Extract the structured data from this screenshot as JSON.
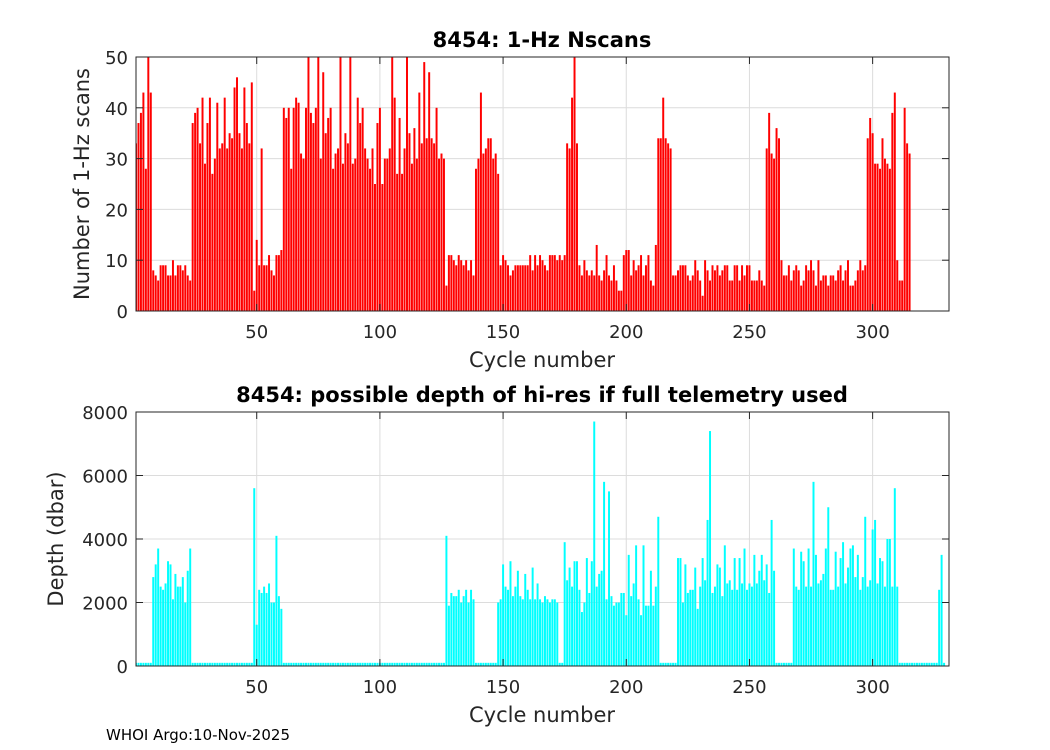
{
  "footer": "WHOI Argo:10-Nov-2025",
  "chart_data": [
    {
      "type": "bar",
      "title": "8454: 1-Hz Nscans",
      "xlabel": "Cycle number",
      "ylabel": "Number of 1-Hz scans",
      "xlim": [
        1,
        331
      ],
      "ylim": [
        0,
        50
      ],
      "xticks": [
        50,
        100,
        150,
        200,
        250,
        300
      ],
      "yticks": [
        0,
        10,
        20,
        30,
        40,
        50
      ],
      "grid": true,
      "bar_color": "#ff0000",
      "x_start": 1,
      "values": [
        33,
        37,
        39,
        43,
        28,
        50,
        43,
        8,
        7,
        6,
        9,
        9,
        9,
        7,
        7,
        10,
        7,
        9,
        9,
        8,
        9,
        7,
        6,
        37,
        39,
        40,
        33,
        42,
        29,
        37,
        42,
        27,
        30,
        41,
        32,
        33,
        42,
        32,
        35,
        34,
        44,
        46,
        35,
        32,
        44,
        37,
        33,
        45,
        4,
        14,
        9,
        32,
        9,
        9,
        11,
        8,
        7,
        11,
        11,
        12,
        40,
        38,
        40,
        28,
        40,
        42,
        41,
        31,
        30,
        40,
        50,
        39,
        37,
        40,
        50,
        30,
        47,
        35,
        38,
        40,
        28,
        31,
        32,
        50,
        29,
        35,
        33,
        50,
        29,
        30,
        42,
        37,
        40,
        32,
        30,
        28,
        32,
        25,
        37,
        40,
        25,
        30,
        30,
        32,
        50,
        42,
        27,
        38,
        27,
        32,
        50,
        35,
        29,
        36,
        30,
        43,
        33,
        49,
        34,
        47,
        34,
        33,
        40,
        30,
        31,
        30,
        5,
        11,
        11,
        10,
        9,
        11,
        10,
        9,
        10,
        8,
        10,
        7,
        28,
        30,
        43,
        31,
        32,
        34,
        34,
        30,
        31,
        27,
        9,
        11,
        10,
        9,
        7,
        8,
        9,
        9,
        9,
        9,
        9,
        9,
        11,
        8,
        11,
        9,
        11,
        10,
        9,
        8,
        11,
        11,
        11,
        10,
        11,
        10,
        11,
        33,
        32,
        42,
        50,
        33,
        9,
        7,
        10,
        8,
        7,
        8,
        7,
        13,
        7,
        6,
        8,
        11,
        7,
        6,
        9,
        6,
        4,
        4,
        11,
        12,
        12,
        7,
        10,
        8,
        9,
        11,
        7,
        9,
        11,
        6,
        5,
        13,
        34,
        34,
        42,
        34,
        33,
        32,
        7,
        7,
        8,
        9,
        9,
        9,
        7,
        6,
        7,
        10,
        8,
        6,
        3,
        10,
        8,
        6,
        9,
        8,
        9,
        7,
        8,
        9,
        9,
        6,
        6,
        9,
        9,
        6,
        9,
        7,
        9,
        9,
        6,
        6,
        6,
        8,
        6,
        5,
        32,
        39,
        31,
        30,
        36,
        34,
        10,
        7,
        7,
        9,
        6,
        8,
        9,
        8,
        5,
        6,
        9,
        8,
        10,
        8,
        5,
        10,
        6,
        7,
        7,
        5,
        7,
        7,
        6,
        8,
        9,
        6,
        8,
        10,
        5,
        5,
        6,
        8,
        10,
        8,
        9,
        34,
        38,
        35,
        29,
        29,
        28,
        34,
        30,
        29,
        28,
        39,
        43,
        10,
        6,
        6,
        40,
        33,
        31
      ]
    },
    {
      "type": "bar",
      "title": "8454: possible depth of hi-res if full telemetry used",
      "xlabel": "Cycle number",
      "ylabel": "Depth (dbar)",
      "xlim": [
        1,
        331
      ],
      "ylim": [
        0,
        8000
      ],
      "xticks": [
        50,
        100,
        150,
        200,
        250,
        300
      ],
      "yticks": [
        0,
        2000,
        4000,
        6000,
        8000
      ],
      "grid": true,
      "bar_color": "#00ffff",
      "x_start": 1,
      "values": [
        100,
        100,
        100,
        100,
        100,
        100,
        100,
        2800,
        3200,
        3700,
        2500,
        2400,
        2600,
        3300,
        3200,
        2100,
        2900,
        2500,
        2500,
        2800,
        2000,
        3000,
        3700,
        100,
        100,
        100,
        100,
        100,
        100,
        100,
        100,
        100,
        100,
        100,
        100,
        100,
        100,
        100,
        100,
        100,
        100,
        100,
        100,
        100,
        100,
        100,
        100,
        100,
        5600,
        1300,
        2400,
        2300,
        2500,
        2300,
        2600,
        2000,
        2000,
        4100,
        2200,
        1800,
        100,
        100,
        100,
        100,
        100,
        100,
        100,
        100,
        100,
        100,
        100,
        100,
        100,
        100,
        100,
        100,
        100,
        100,
        100,
        100,
        100,
        100,
        100,
        100,
        100,
        100,
        100,
        100,
        100,
        100,
        100,
        100,
        100,
        100,
        100,
        100,
        100,
        100,
        100,
        100,
        100,
        100,
        100,
        100,
        100,
        100,
        100,
        100,
        100,
        100,
        100,
        100,
        100,
        100,
        100,
        100,
        100,
        100,
        100,
        100,
        100,
        100,
        100,
        100,
        100,
        100,
        4100,
        1900,
        2300,
        2200,
        2200,
        2400,
        2000,
        2200,
        2400,
        2000,
        2400,
        2100,
        100,
        100,
        100,
        100,
        100,
        100,
        100,
        100,
        100,
        2000,
        2100,
        3200,
        2500,
        2400,
        3300,
        2200,
        2500,
        3000,
        2200,
        2100,
        2900,
        2400,
        2100,
        3100,
        2100,
        2600,
        2100,
        2000,
        2200,
        2100,
        2000,
        2100,
        2100,
        2000,
        100,
        100,
        3900,
        2700,
        3100,
        2500,
        3300,
        3300,
        2400,
        1700,
        2000,
        3400,
        2300,
        3300,
        7700,
        2500,
        2900,
        3000,
        5800,
        2100,
        5500,
        2200,
        1900,
        2000,
        2000,
        2300,
        2300,
        1600,
        3500,
        2200,
        2600,
        3800,
        2100,
        1600,
        3800,
        1900,
        1900,
        3000,
        1900,
        2500,
        4700,
        100,
        100,
        100,
        100,
        100,
        100,
        100,
        3400,
        3400,
        2000,
        3200,
        2300,
        2400,
        2400,
        3100,
        1800,
        2500,
        3400,
        2700,
        4600,
        7400,
        2300,
        2500,
        3200,
        3100,
        2200,
        3800,
        2600,
        2700,
        2400,
        3400,
        2400,
        3400,
        2600,
        3700,
        2400,
        2600,
        2500,
        3500,
        2600,
        3000,
        3500,
        2700,
        3200,
        2300,
        4600,
        3000,
        100,
        100,
        100,
        100,
        100,
        100,
        100,
        3700,
        2500,
        2400,
        3600,
        3300,
        2500,
        3700,
        2500,
        5800,
        3500,
        2600,
        2700,
        2900,
        3700,
        5000,
        2400,
        2400,
        3600,
        2500,
        3400,
        3900,
        2600,
        3100,
        3700,
        3800,
        2800,
        3500,
        2400,
        2800,
        4700,
        2500,
        2700,
        4300,
        4600,
        2600,
        3400,
        3300,
        2500,
        4000,
        4000,
        2500,
        5600,
        2500,
        100,
        100,
        100,
        100,
        100,
        100,
        100,
        100,
        100,
        100,
        100,
        100,
        100,
        100,
        100,
        100,
        2400,
        3500,
        100
      ]
    }
  ]
}
